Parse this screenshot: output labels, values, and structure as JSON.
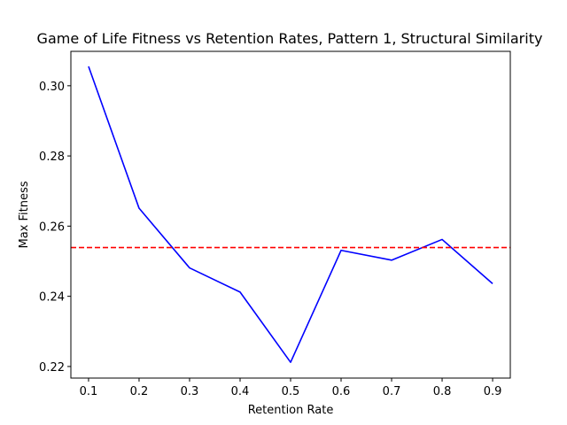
{
  "chart_data": {
    "type": "line",
    "title": "Game of Life Fitness vs Retention Rates, Pattern 1, Structural Similarity",
    "xlabel": "Retention Rate",
    "ylabel": "Max Fitness",
    "xlim": [
      0.065,
      0.935
    ],
    "ylim": [
      0.2167,
      0.3098
    ],
    "xticks": [
      0.1,
      0.2,
      0.3,
      0.4,
      0.5,
      0.6,
      0.7,
      0.8,
      0.9
    ],
    "xtick_labels": [
      "0.1",
      "0.2",
      "0.3",
      "0.4",
      "0.5",
      "0.6",
      "0.7",
      "0.8",
      "0.9"
    ],
    "yticks": [
      0.22,
      0.24,
      0.26,
      0.28,
      0.3
    ],
    "ytick_labels": [
      "0.22",
      "0.24",
      "0.26",
      "0.28",
      "0.30"
    ],
    "grid": false,
    "series": [
      {
        "color": "#0000ff",
        "style": "solid",
        "x": [
          0.1,
          0.2,
          0.3,
          0.4,
          0.5,
          0.6,
          0.7,
          0.8,
          0.9
        ],
        "y": [
          0.3055,
          0.2651,
          0.2481,
          0.2412,
          0.2212,
          0.2531,
          0.2503,
          0.2562,
          0.2436
        ]
      }
    ],
    "reference_lines": [
      {
        "orientation": "horizontal",
        "y": 0.2539,
        "color": "#ff0000",
        "style": "dashed"
      }
    ]
  }
}
